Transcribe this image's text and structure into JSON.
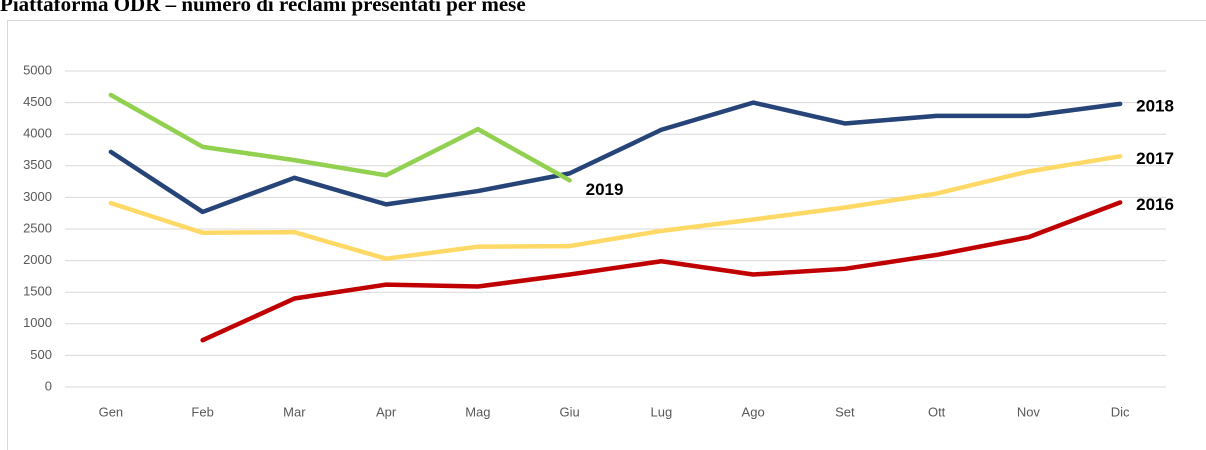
{
  "chart_data": {
    "type": "line",
    "title": "Piattaforma ODR – numero di reclami presentati per mese",
    "categories": [
      "Gen",
      "Feb",
      "Mar",
      "Apr",
      "Mag",
      "Giu",
      "Lug",
      "Ago",
      "Set",
      "Ott",
      "Nov",
      "Dic"
    ],
    "series": [
      {
        "name": "2016",
        "color": "#c00000",
        "values": [
          null,
          740,
          1400,
          1620,
          1590,
          1780,
          1990,
          1780,
          1870,
          2090,
          2370,
          2920
        ]
      },
      {
        "name": "2017",
        "color": "#ffd966",
        "values": [
          2910,
          2440,
          2450,
          2030,
          2220,
          2230,
          2470,
          2650,
          2840,
          3060,
          3410,
          3650
        ]
      },
      {
        "name": "2018",
        "color": "#264478",
        "values": [
          3720,
          2770,
          3310,
          2890,
          3100,
          3380,
          4070,
          4500,
          4170,
          4290,
          4290,
          4480
        ]
      },
      {
        "name": "2019",
        "color": "#92d050",
        "values": [
          4620,
          3800,
          3590,
          3350,
          4080,
          3270,
          null,
          null,
          null,
          null,
          null,
          null
        ]
      }
    ],
    "ylim": [
      0,
      5000
    ],
    "yticks": [
      0,
      500,
      1000,
      1500,
      2000,
      2500,
      3000,
      3500,
      4000,
      4500,
      5000
    ],
    "grid": true
  }
}
